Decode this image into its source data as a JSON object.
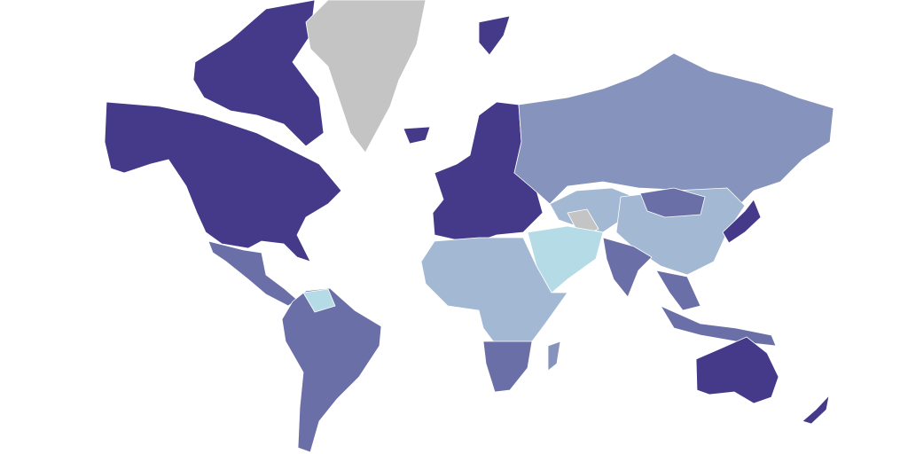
{
  "palette": [
    "#45398a",
    "#6b6fa8",
    "#8593bd",
    "#a3b8d3",
    "#b5dce6",
    "#c4c4c4"
  ]
}
